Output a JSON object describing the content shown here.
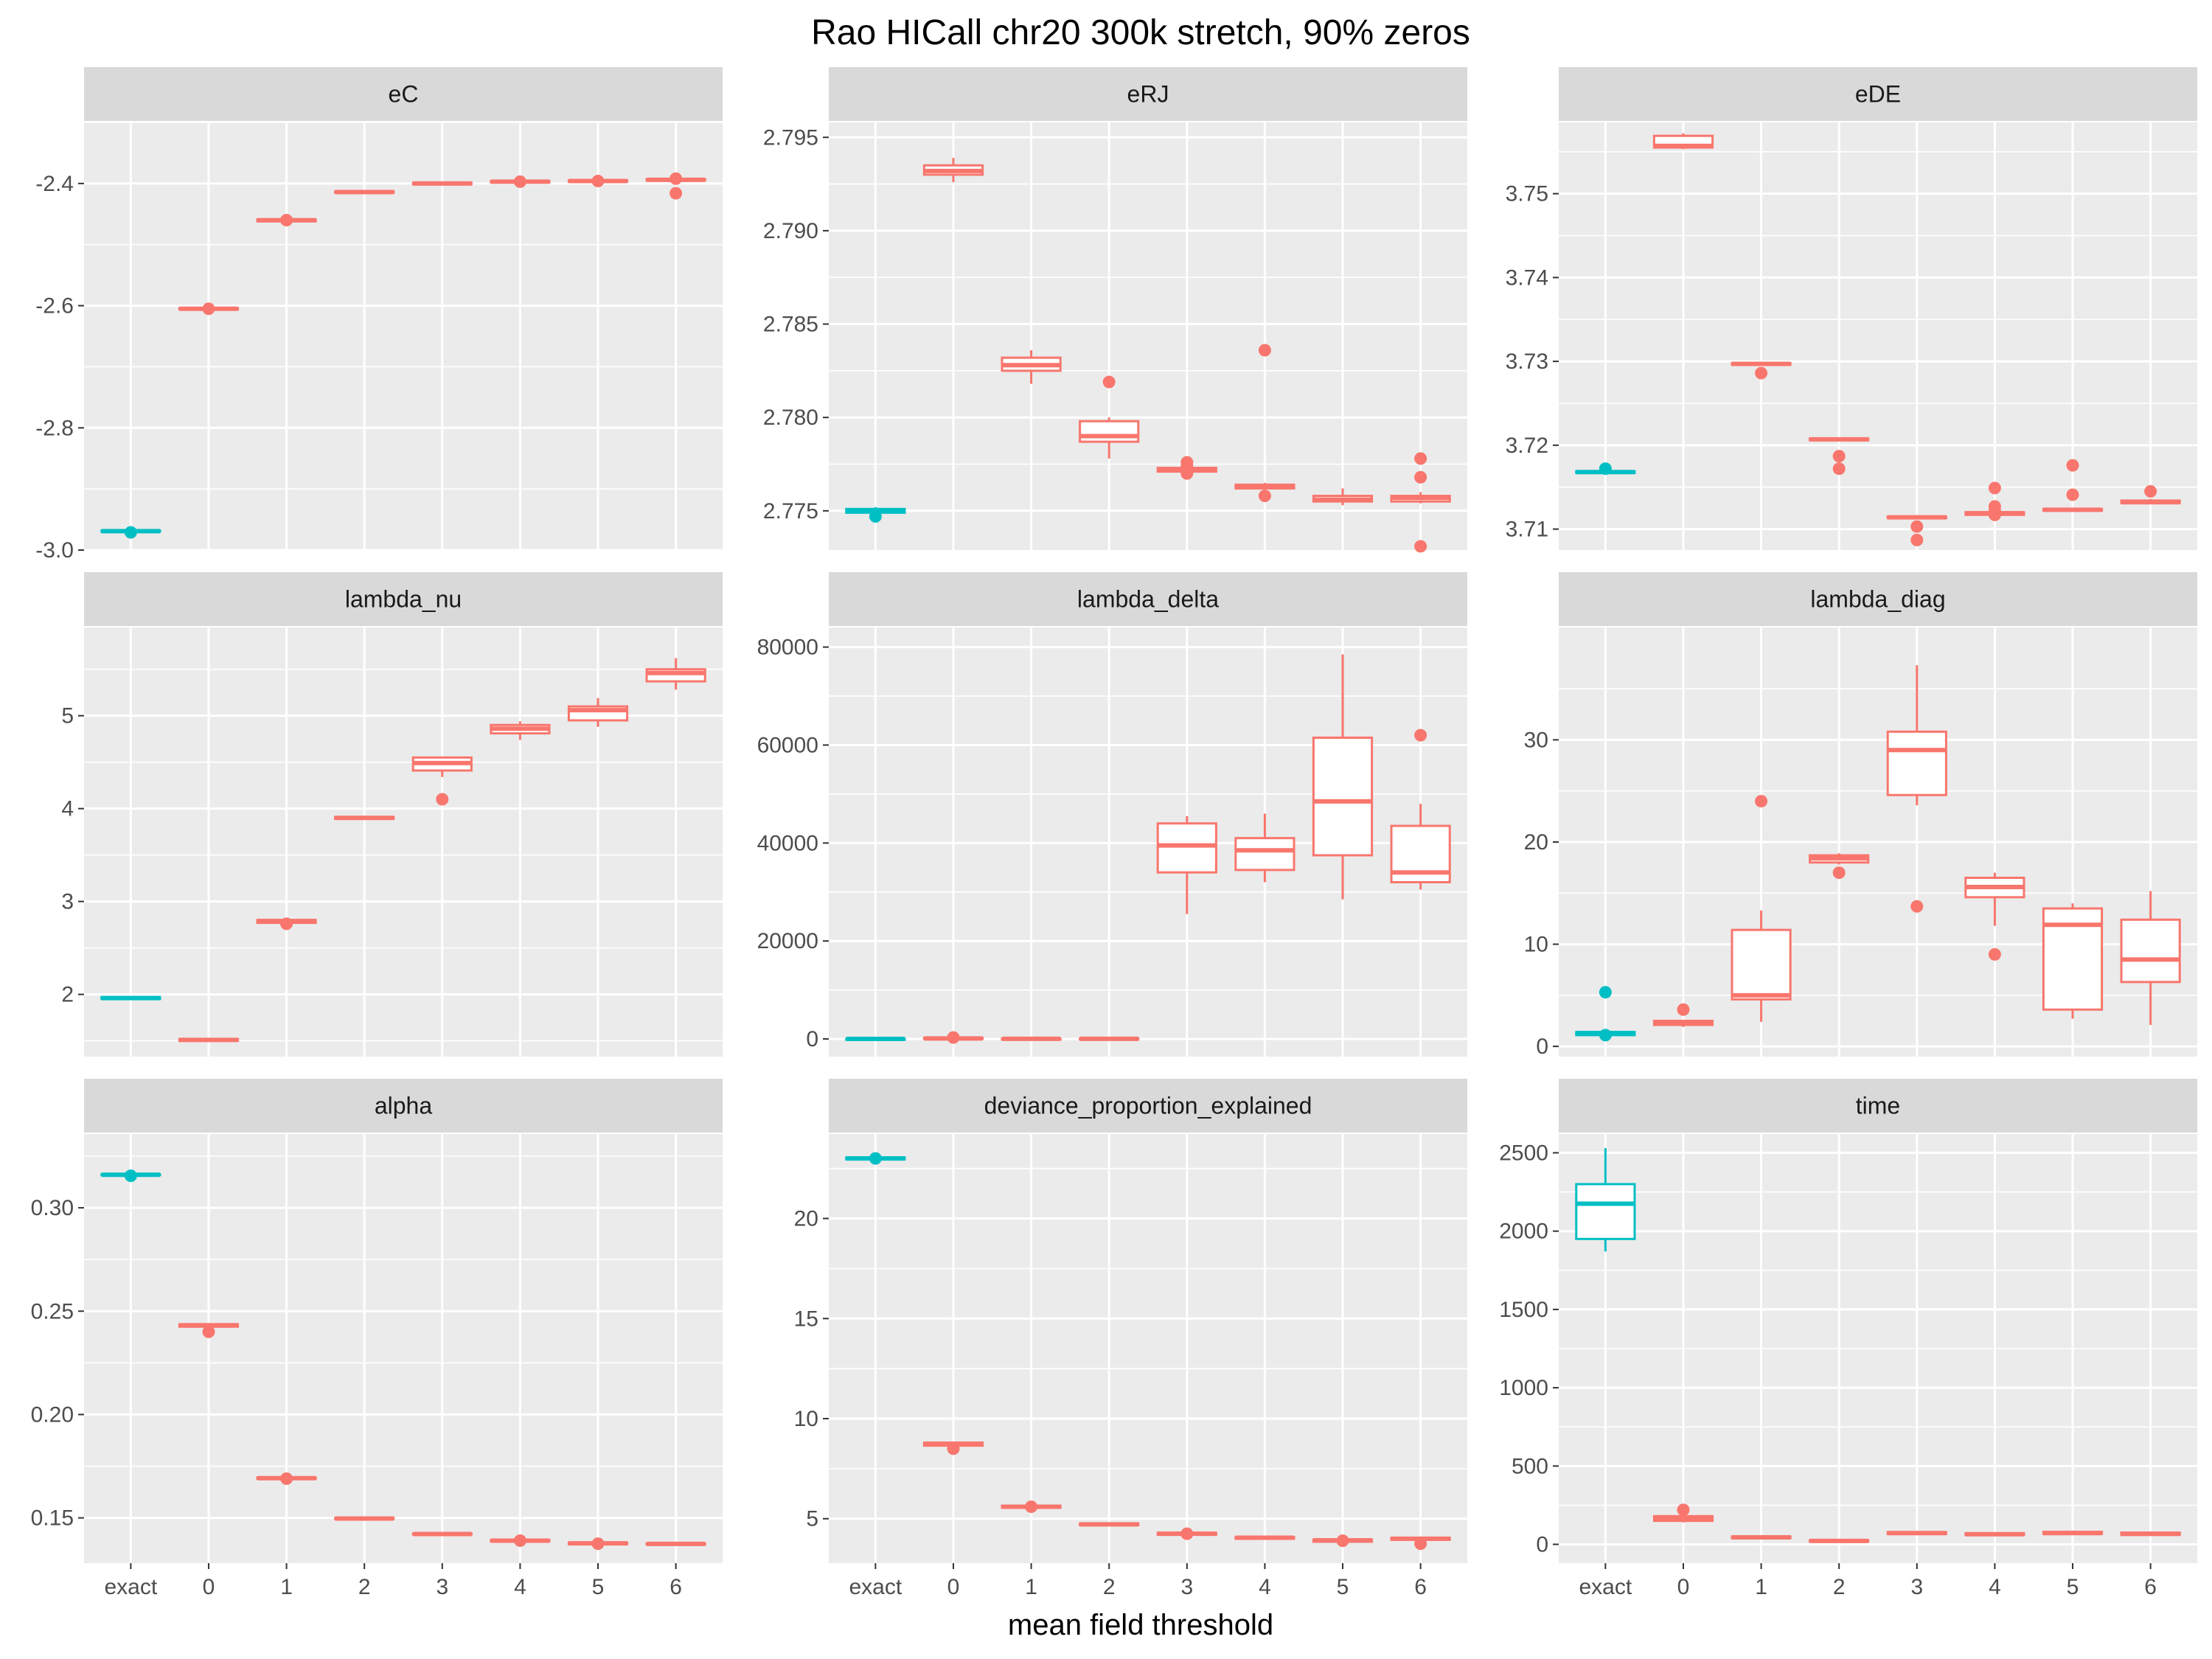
{
  "title": "Rao HICall chr20 300k stretch, 90% zeros",
  "xlabel": "mean field threshold",
  "colors": {
    "exact": "#00BFC4",
    "mf": "#F8766D",
    "panel_bg": "#EBEBEB",
    "strip_bg": "#D9D9D9",
    "grid": "#FFFFFF"
  },
  "chart_data": [
    {
      "type": "box",
      "title": "eC",
      "categories": [
        "exact",
        "0",
        "1",
        "2",
        "3",
        "4",
        "5",
        "6"
      ],
      "ylim": [
        -3.0,
        -2.3
      ],
      "yticks": [
        -3.0,
        -2.8,
        -2.6,
        -2.4
      ],
      "ytick_labels": [
        "-3.0",
        "-2.8",
        "-2.6",
        "-2.4"
      ],
      "boxes": [
        {
          "lw": -2.972,
          "q1": -2.97,
          "med": -2.969,
          "q3": -2.968,
          "uw": -2.966,
          "out": [
            -2.971
          ]
        },
        {
          "lw": -2.607,
          "q1": -2.606,
          "med": -2.605,
          "q3": -2.604,
          "uw": -2.603,
          "out": [
            -2.605
          ]
        },
        {
          "lw": -2.463,
          "q1": -2.462,
          "med": -2.46,
          "q3": -2.459,
          "uw": -2.458,
          "out": [
            -2.46
          ]
        },
        {
          "lw": -2.416,
          "q1": -2.415,
          "med": -2.414,
          "q3": -2.413,
          "uw": -2.412,
          "out": []
        },
        {
          "lw": -2.402,
          "q1": -2.401,
          "med": -2.4,
          "q3": -2.399,
          "uw": -2.398,
          "out": []
        },
        {
          "lw": -2.399,
          "q1": -2.398,
          "med": -2.397,
          "q3": -2.396,
          "uw": -2.395,
          "out": [
            -2.397
          ]
        },
        {
          "lw": -2.398,
          "q1": -2.397,
          "med": -2.396,
          "q3": -2.395,
          "uw": -2.394,
          "out": [
            -2.396
          ]
        },
        {
          "lw": -2.396,
          "q1": -2.395,
          "med": -2.394,
          "q3": -2.393,
          "uw": -2.392,
          "out": [
            -2.392,
            -2.416
          ]
        }
      ]
    },
    {
      "type": "box",
      "title": "eRJ",
      "categories": [
        "exact",
        "0",
        "1",
        "2",
        "3",
        "4",
        "5",
        "6"
      ],
      "ylim": [
        2.7729,
        2.7958
      ],
      "yticks": [
        2.775,
        2.78,
        2.785,
        2.79,
        2.795
      ],
      "ytick_labels": [
        "2.775",
        "2.780",
        "2.785",
        "2.790",
        "2.795"
      ],
      "boxes": [
        {
          "lw": 2.7748,
          "q1": 2.7749,
          "med": 2.775,
          "q3": 2.7751,
          "uw": 2.7752,
          "out": [
            2.7747
          ]
        },
        {
          "lw": 2.7926,
          "q1": 2.793,
          "med": 2.7932,
          "q3": 2.7935,
          "uw": 2.7939,
          "out": []
        },
        {
          "lw": 2.7818,
          "q1": 2.7825,
          "med": 2.7828,
          "q3": 2.7832,
          "uw": 2.7836,
          "out": []
        },
        {
          "lw": 2.7778,
          "q1": 2.7787,
          "med": 2.779,
          "q3": 2.7798,
          "uw": 2.78,
          "out": [
            2.7819
          ]
        },
        {
          "lw": 2.7771,
          "q1": 2.7771,
          "med": 2.7772,
          "q3": 2.7773,
          "uw": 2.7774,
          "out": [
            2.7776,
            2.7774,
            2.777
          ]
        },
        {
          "lw": 2.7762,
          "q1": 2.7762,
          "med": 2.7763,
          "q3": 2.7764,
          "uw": 2.7765,
          "out": [
            2.7836,
            2.7758
          ]
        },
        {
          "lw": 2.7753,
          "q1": 2.7755,
          "med": 2.7756,
          "q3": 2.7758,
          "uw": 2.7762,
          "out": []
        },
        {
          "lw": 2.7754,
          "q1": 2.7755,
          "med": 2.7757,
          "q3": 2.7758,
          "uw": 2.776,
          "out": [
            2.7778,
            2.7768,
            2.7731
          ]
        }
      ]
    },
    {
      "type": "box",
      "title": "eDE",
      "categories": [
        "exact",
        "0",
        "1",
        "2",
        "3",
        "4",
        "5",
        "6"
      ],
      "ylim": [
        3.7075,
        3.7585
      ],
      "yticks": [
        3.71,
        3.72,
        3.73,
        3.74,
        3.75
      ],
      "ytick_labels": [
        "3.71",
        "3.72",
        "3.73",
        "3.74",
        "3.75"
      ],
      "boxes": [
        {
          "lw": 3.7166,
          "q1": 3.7167,
          "med": 3.7168,
          "q3": 3.7169,
          "uw": 3.717,
          "out": [
            3.7172
          ]
        },
        {
          "lw": 3.7553,
          "q1": 3.7555,
          "med": 3.7557,
          "q3": 3.7569,
          "uw": 3.7572,
          "out": []
        },
        {
          "lw": 3.7295,
          "q1": 3.7296,
          "med": 3.7297,
          "q3": 3.7298,
          "uw": 3.7299,
          "out": [
            3.7286
          ]
        },
        {
          "lw": 3.7205,
          "q1": 3.7206,
          "med": 3.7207,
          "q3": 3.7208,
          "uw": 3.7209,
          "out": [
            3.7187,
            3.7172
          ]
        },
        {
          "lw": 3.7112,
          "q1": 3.7113,
          "med": 3.7114,
          "q3": 3.7115,
          "uw": 3.7116,
          "out": [
            3.7103,
            3.7087
          ]
        },
        {
          "lw": 3.7116,
          "q1": 3.7117,
          "med": 3.7119,
          "q3": 3.712,
          "uw": 3.7122,
          "out": [
            3.7149,
            3.7127,
            3.7122,
            3.7117
          ]
        },
        {
          "lw": 3.7121,
          "q1": 3.7122,
          "med": 3.7123,
          "q3": 3.7124,
          "uw": 3.7125,
          "out": [
            3.7176,
            3.7141
          ]
        },
        {
          "lw": 3.713,
          "q1": 3.7131,
          "med": 3.7132,
          "q3": 3.7134,
          "uw": 3.7136,
          "out": [
            3.7145
          ]
        }
      ]
    },
    {
      "type": "box",
      "title": "lambda_nu",
      "categories": [
        "exact",
        "0",
        "1",
        "2",
        "3",
        "4",
        "5",
        "6"
      ],
      "ylim": [
        1.33,
        5.95
      ],
      "yticks": [
        2,
        3,
        4,
        5
      ],
      "ytick_labels": [
        "2",
        "3",
        "4",
        "5"
      ],
      "boxes": [
        {
          "lw": 1.94,
          "q1": 1.95,
          "med": 1.96,
          "q3": 1.97,
          "uw": 1.98,
          "out": []
        },
        {
          "lw": 1.49,
          "q1": 1.5,
          "med": 1.51,
          "q3": 1.52,
          "uw": 1.53,
          "out": []
        },
        {
          "lw": 2.76,
          "q1": 2.77,
          "med": 2.79,
          "q3": 2.8,
          "uw": 2.81,
          "out": [
            2.76
          ]
        },
        {
          "lw": 3.88,
          "q1": 3.89,
          "med": 3.9,
          "q3": 3.91,
          "uw": 3.92,
          "out": []
        },
        {
          "lw": 4.34,
          "q1": 4.41,
          "med": 4.49,
          "q3": 4.55,
          "uw": 4.56,
          "out": [
            4.1
          ]
        },
        {
          "lw": 4.74,
          "q1": 4.81,
          "med": 4.86,
          "q3": 4.9,
          "uw": 4.94,
          "out": []
        },
        {
          "lw": 4.88,
          "q1": 4.95,
          "med": 5.06,
          "q3": 5.1,
          "uw": 5.19,
          "out": []
        },
        {
          "lw": 5.28,
          "q1": 5.37,
          "med": 5.46,
          "q3": 5.5,
          "uw": 5.62,
          "out": []
        }
      ]
    },
    {
      "type": "box",
      "title": "lambda_delta",
      "categories": [
        "exact",
        "0",
        "1",
        "2",
        "3",
        "4",
        "5",
        "6"
      ],
      "ylim": [
        -3600,
        84000
      ],
      "yticks": [
        0,
        20000,
        40000,
        60000,
        80000
      ],
      "ytick_labels": [
        "0",
        "20000",
        "40000",
        "60000",
        "80000"
      ],
      "boxes": [
        {
          "lw": 0,
          "q1": 0,
          "med": 5,
          "q3": 10,
          "uw": 15,
          "out": []
        },
        {
          "lw": 0,
          "q1": 20,
          "med": 100,
          "q3": 200,
          "uw": 300,
          "out": [
            300
          ]
        },
        {
          "lw": 0,
          "q1": 10,
          "med": 30,
          "q3": 60,
          "uw": 80,
          "out": []
        },
        {
          "lw": 0,
          "q1": 10,
          "med": 40,
          "q3": 80,
          "uw": 100,
          "out": []
        },
        {
          "lw": 25500,
          "q1": 34000,
          "med": 39500,
          "q3": 44000,
          "uw": 45500,
          "out": []
        },
        {
          "lw": 32000,
          "q1": 34500,
          "med": 38500,
          "q3": 41000,
          "uw": 46000,
          "out": []
        },
        {
          "lw": 28500,
          "q1": 37500,
          "med": 48500,
          "q3": 61500,
          "uw": 78500,
          "out": []
        },
        {
          "lw": 30500,
          "q1": 32000,
          "med": 34000,
          "q3": 43500,
          "uw": 48000,
          "out": [
            62000
          ]
        }
      ]
    },
    {
      "type": "box",
      "title": "lambda_diag",
      "categories": [
        "exact",
        "0",
        "1",
        "2",
        "3",
        "4",
        "5",
        "6"
      ],
      "ylim": [
        -1.0,
        41.0
      ],
      "yticks": [
        0,
        10,
        20,
        30
      ],
      "ytick_labels": [
        "0",
        "10",
        "20",
        "30"
      ],
      "boxes": [
        {
          "lw": 1.0,
          "q1": 1.1,
          "med": 1.3,
          "q3": 1.4,
          "uw": 1.5,
          "out": [
            5.3,
            1.1
          ]
        },
        {
          "lw": 1.9,
          "q1": 2.1,
          "med": 2.3,
          "q3": 2.5,
          "uw": 2.6,
          "out": [
            3.6
          ]
        },
        {
          "lw": 2.4,
          "q1": 4.6,
          "med": 5.0,
          "q3": 11.4,
          "uw": 13.3,
          "out": [
            24.0
          ]
        },
        {
          "lw": 17.8,
          "q1": 18.0,
          "med": 18.4,
          "q3": 18.7,
          "uw": 18.9,
          "out": [
            17.0
          ]
        },
        {
          "lw": 23.6,
          "q1": 24.6,
          "med": 29.0,
          "q3": 30.8,
          "uw": 37.3,
          "out": [
            13.7
          ]
        },
        {
          "lw": 11.8,
          "q1": 14.6,
          "med": 15.6,
          "q3": 16.5,
          "uw": 17.0,
          "out": [
            9.0
          ]
        },
        {
          "lw": 2.7,
          "q1": 3.6,
          "med": 11.9,
          "q3": 13.5,
          "uw": 14.0,
          "out": []
        },
        {
          "lw": 2.1,
          "q1": 6.3,
          "med": 8.5,
          "q3": 12.4,
          "uw": 15.2,
          "out": []
        }
      ]
    },
    {
      "type": "box",
      "title": "alpha",
      "categories": [
        "exact",
        "0",
        "1",
        "2",
        "3",
        "4",
        "5",
        "6"
      ],
      "ylim": [
        0.1281,
        0.3357
      ],
      "yticks": [
        0.15,
        0.2,
        0.25,
        0.3
      ],
      "ytick_labels": [
        "0.15",
        "0.20",
        "0.25",
        "0.30"
      ],
      "boxes": [
        {
          "lw": 0.3155,
          "q1": 0.3158,
          "med": 0.316,
          "q3": 0.3162,
          "uw": 0.3165,
          "out": [
            0.3155
          ]
        },
        {
          "lw": 0.242,
          "q1": 0.2425,
          "med": 0.2432,
          "q3": 0.2437,
          "uw": 0.244,
          "out": [
            0.24
          ]
        },
        {
          "lw": 0.1685,
          "q1": 0.1689,
          "med": 0.1692,
          "q3": 0.1695,
          "uw": 0.1698,
          "out": [
            0.169
          ]
        },
        {
          "lw": 0.1493,
          "q1": 0.1495,
          "med": 0.1497,
          "q3": 0.1499,
          "uw": 0.1501,
          "out": []
        },
        {
          "lw": 0.1418,
          "q1": 0.142,
          "med": 0.1422,
          "q3": 0.1424,
          "uw": 0.1426,
          "out": []
        },
        {
          "lw": 0.1385,
          "q1": 0.1387,
          "med": 0.139,
          "q3": 0.1393,
          "uw": 0.1395,
          "out": [
            0.139
          ]
        },
        {
          "lw": 0.137,
          "q1": 0.1373,
          "med": 0.1377,
          "q3": 0.138,
          "uw": 0.1383,
          "out": [
            0.1375
          ]
        },
        {
          "lw": 0.137,
          "q1": 0.1372,
          "med": 0.1374,
          "q3": 0.1376,
          "uw": 0.1378,
          "out": []
        }
      ]
    },
    {
      "type": "box",
      "title": "deviance_proportion_explained",
      "categories": [
        "exact",
        "0",
        "1",
        "2",
        "3",
        "4",
        "5",
        "6"
      ],
      "ylim": [
        2.78,
        24.22
      ],
      "yticks": [
        5,
        10,
        15,
        20
      ],
      "ytick_labels": [
        "5",
        "10",
        "15",
        "20"
      ],
      "boxes": [
        {
          "lw": 22.9,
          "q1": 22.95,
          "med": 23.0,
          "q3": 23.05,
          "uw": 23.1,
          "out": [
            23.0
          ]
        },
        {
          "lw": 8.6,
          "q1": 8.65,
          "med": 8.75,
          "q3": 8.8,
          "uw": 8.85,
          "out": [
            8.5
          ]
        },
        {
          "lw": 5.5,
          "q1": 5.55,
          "med": 5.6,
          "q3": 5.65,
          "uw": 5.7,
          "out": [
            5.6
          ]
        },
        {
          "lw": 4.65,
          "q1": 4.68,
          "med": 4.72,
          "q3": 4.76,
          "uw": 4.8,
          "out": []
        },
        {
          "lw": 4.15,
          "q1": 4.2,
          "med": 4.25,
          "q3": 4.3,
          "uw": 4.35,
          "out": [
            4.25
          ]
        },
        {
          "lw": 3.98,
          "q1": 4.0,
          "med": 4.05,
          "q3": 4.08,
          "uw": 4.1,
          "out": []
        },
        {
          "lw": 3.8,
          "q1": 3.85,
          "med": 3.92,
          "q3": 3.96,
          "uw": 4.0,
          "out": [
            3.9
          ]
        },
        {
          "lw": 3.9,
          "q1": 3.95,
          "med": 4.0,
          "q3": 4.05,
          "uw": 4.1,
          "out": [
            3.75
          ]
        }
      ]
    },
    {
      "type": "box",
      "title": "time",
      "categories": [
        "exact",
        "0",
        "1",
        "2",
        "3",
        "4",
        "5",
        "6"
      ],
      "ylim": [
        -120,
        2620
      ],
      "yticks": [
        0,
        500,
        1000,
        1500,
        2000,
        2500
      ],
      "ytick_labels": [
        "0",
        "500",
        "1000",
        "1500",
        "2000",
        "2500"
      ],
      "boxes": [
        {
          "lw": 1870,
          "q1": 1950,
          "med": 2175,
          "q3": 2300,
          "uw": 2530,
          "out": []
        },
        {
          "lw": 140,
          "q1": 150,
          "med": 165,
          "q3": 180,
          "uw": 190,
          "out": [
            220
          ]
        },
        {
          "lw": 35,
          "q1": 40,
          "med": 45,
          "q3": 50,
          "uw": 55,
          "out": []
        },
        {
          "lw": 15,
          "q1": 18,
          "med": 22,
          "q3": 26,
          "uw": 30,
          "out": []
        },
        {
          "lw": 60,
          "q1": 66,
          "med": 72,
          "q3": 78,
          "uw": 85,
          "out": []
        },
        {
          "lw": 55,
          "q1": 60,
          "med": 65,
          "q3": 70,
          "uw": 75,
          "out": []
        },
        {
          "lw": 60,
          "q1": 67,
          "med": 72,
          "q3": 80,
          "uw": 88,
          "out": []
        },
        {
          "lw": 55,
          "q1": 60,
          "med": 68,
          "q3": 75,
          "uw": 82,
          "out": []
        }
      ]
    }
  ]
}
